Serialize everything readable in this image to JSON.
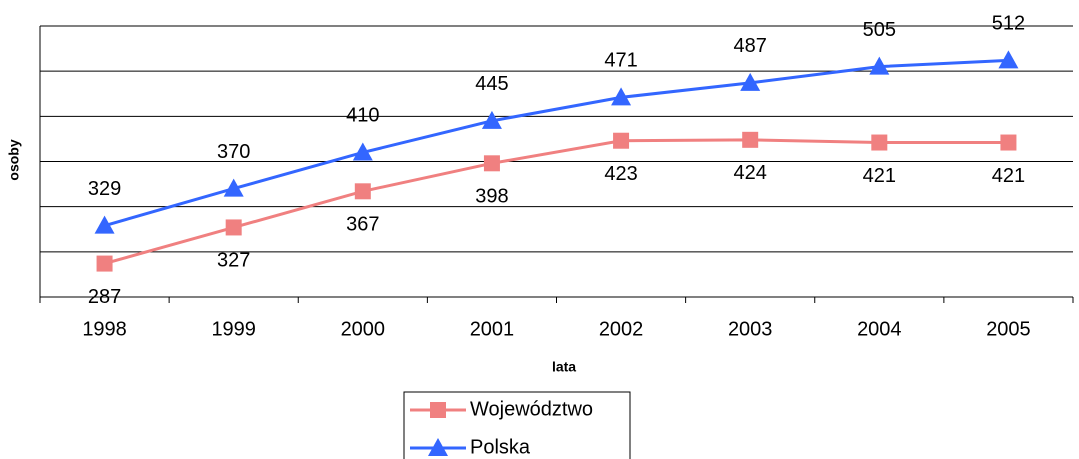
{
  "chart_data": {
    "type": "line",
    "xlabel": "lata",
    "ylabel": "osoby",
    "categories": [
      "1998",
      "1999",
      "2000",
      "2001",
      "2002",
      "2003",
      "2004",
      "2005"
    ],
    "series": [
      {
        "name": "Województwo",
        "color": "#f08080",
        "marker": "square",
        "label_position": "below",
        "values": [
          287,
          327,
          367,
          398,
          423,
          424,
          421,
          421
        ]
      },
      {
        "name": "Polska",
        "color": "#3366ff",
        "marker": "triangle",
        "label_position": "above",
        "values": [
          329,
          370,
          410,
          445,
          471,
          487,
          505,
          512
        ]
      }
    ],
    "ylim": [
      250,
      550
    ],
    "yticks": [
      250,
      300,
      350,
      400,
      450,
      500,
      550
    ],
    "show_ytick_labels": false,
    "grid": true,
    "legend": "bottom"
  }
}
